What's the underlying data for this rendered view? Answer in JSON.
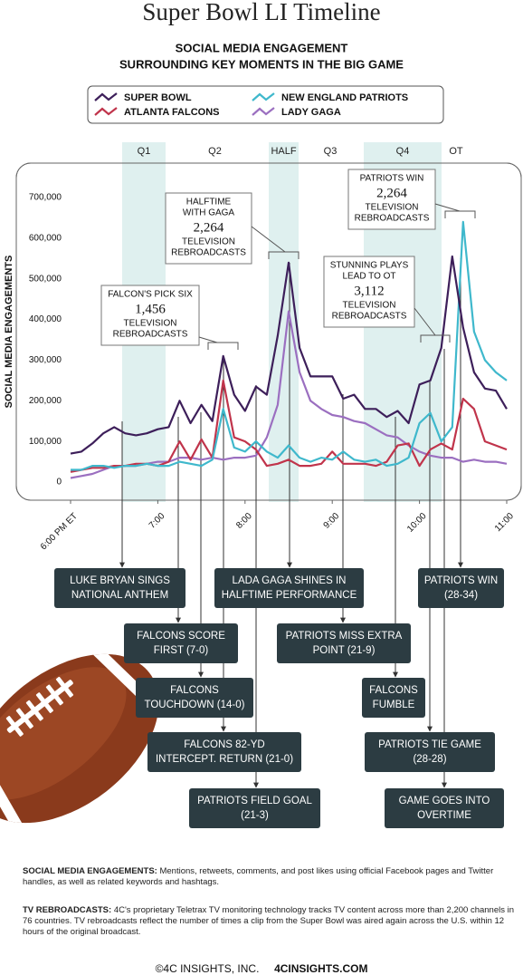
{
  "header": {
    "title": "Super Bowl LI Timeline"
  },
  "chart_data": {
    "type": "line",
    "title": [
      "SOCIAL MEDIA ENGAGEMENT",
      "SURROUNDING KEY MOMENTS IN THE BIG GAME"
    ],
    "ylabel": "SOCIAL MEDIA ENGAGEMENTS",
    "x": [
      18,
      18.125,
      18.25,
      18.375,
      18.5,
      18.625,
      18.75,
      18.875,
      19,
      19.125,
      19.25,
      19.375,
      19.5,
      19.625,
      19.75,
      19.875,
      20,
      20.125,
      20.25,
      20.375,
      20.5,
      20.625,
      20.75,
      20.875,
      21,
      21.125,
      21.25,
      21.375,
      21.5,
      21.625,
      21.75,
      21.875,
      22,
      22.125,
      22.25,
      22.375,
      22.5,
      22.625,
      22.75,
      22.875,
      23
    ],
    "xlim": [
      18,
      23
    ],
    "xticks": [
      {
        "value": 18,
        "label": "6:00 PM ET"
      },
      {
        "value": 19,
        "label": "7:00"
      },
      {
        "value": 20,
        "label": "8:00"
      },
      {
        "value": 21,
        "label": "9:00"
      },
      {
        "value": 22,
        "label": "10:00"
      },
      {
        "value": 23,
        "label": "11:00"
      }
    ],
    "ylim": [
      0,
      700000
    ],
    "yticks": [
      0,
      {
        "value": 100000,
        "label": "100,000"
      },
      {
        "value": 200000,
        "label": "200,000"
      },
      {
        "value": 300000,
        "label": "300,000"
      },
      {
        "value": 400000,
        "label": "400,000"
      },
      {
        "value": 500000,
        "label": "500,000"
      },
      {
        "value": 600000,
        "label": "600,000"
      },
      {
        "value": 700000,
        "label": "700,000"
      }
    ],
    "series": [
      {
        "name": "SUPER BOWL",
        "color": "#3d1f5a",
        "values": [
          70000,
          75000,
          95000,
          120000,
          135000,
          120000,
          115000,
          120000,
          130000,
          135000,
          200000,
          145000,
          190000,
          150000,
          310000,
          215000,
          175000,
          235000,
          215000,
          360000,
          540000,
          330000,
          260000,
          260000,
          260000,
          205000,
          215000,
          180000,
          180000,
          160000,
          175000,
          145000,
          240000,
          250000,
          330000,
          555000,
          380000,
          270000,
          230000,
          225000,
          180000
        ]
      },
      {
        "name": "NEW ENGLAND PATRIOTS",
        "color": "#3fb8cc",
        "values": [
          30000,
          30000,
          40000,
          40000,
          35000,
          40000,
          40000,
          45000,
          40000,
          40000,
          50000,
          45000,
          40000,
          55000,
          180000,
          85000,
          75000,
          100000,
          75000,
          60000,
          90000,
          60000,
          50000,
          60000,
          55000,
          75000,
          55000,
          50000,
          55000,
          40000,
          45000,
          60000,
          145000,
          170000,
          100000,
          135000,
          640000,
          370000,
          300000,
          270000,
          250000
        ]
      },
      {
        "name": "ATLANTA FALCONS",
        "color": "#c0344b",
        "values": [
          25000,
          30000,
          35000,
          35000,
          40000,
          40000,
          45000,
          45000,
          40000,
          50000,
          100000,
          55000,
          105000,
          60000,
          250000,
          110000,
          100000,
          80000,
          40000,
          45000,
          55000,
          40000,
          40000,
          45000,
          75000,
          45000,
          45000,
          45000,
          40000,
          50000,
          90000,
          95000,
          40000,
          80000,
          95000,
          80000,
          205000,
          180000,
          100000,
          90000,
          80000
        ]
      },
      {
        "name": "LADY GAGA",
        "color": "#9b6fc0",
        "values": [
          10000,
          15000,
          20000,
          30000,
          40000,
          40000,
          40000,
          45000,
          50000,
          50000,
          60000,
          60000,
          55000,
          60000,
          55000,
          60000,
          60000,
          65000,
          110000,
          190000,
          420000,
          270000,
          200000,
          180000,
          165000,
          160000,
          150000,
          145000,
          130000,
          115000,
          110000,
          90000,
          75000,
          65000,
          60000,
          60000,
          50000,
          55000,
          50000,
          50000,
          45000
        ]
      }
    ],
    "periods": [
      "Q1",
      "Q2",
      "HALF",
      "Q3",
      "Q4",
      "OT"
    ],
    "annotations": [
      {
        "title": [
          "FALCON'S PICK SIX"
        ],
        "count": "1,456",
        "caption": [
          "TELEVISION",
          "REBROADCASTS"
        ]
      },
      {
        "title": [
          "HALFTIME",
          "WITH GAGA"
        ],
        "count": "2,264",
        "caption": [
          "TELEVISION",
          "REBROADCASTS"
        ]
      },
      {
        "title": [
          "STUNNING PLAYS",
          "LEAD TO OT"
        ],
        "count": "3,112",
        "caption": [
          "TELEVISION",
          "REBROADCASTS"
        ]
      },
      {
        "title": [
          "PATRIOTS WIN"
        ],
        "count": "2,264",
        "caption": [
          "TELEVISION",
          "REBROADCASTS"
        ]
      }
    ],
    "events": [
      [
        "LUKE BRYAN SINGS",
        "NATIONAL ANTHEM"
      ],
      [
        "LADA GAGA SHINES IN",
        "HALFTIME PERFORMANCE"
      ],
      [
        "PATRIOTS WIN",
        "(28-34)"
      ],
      [
        "FALCONS SCORE",
        "FIRST (7-0)"
      ],
      [
        "PATRIOTS MISS EXTRA",
        "POINT (21-9)"
      ],
      [
        "FALCONS",
        "TOUCHDOWN (14-0)"
      ],
      [
        "FALCONS",
        "FUMBLE"
      ],
      [
        "FALCONS  82-YD",
        "INTERCEPT. RETURN (21-0)"
      ],
      [
        "PATRIOTS TIE GAME",
        "(28-28)"
      ],
      [
        "PATRIOTS FIELD GOAL",
        "(21-3)"
      ],
      [
        "GAME GOES INTO",
        "OVERTIME"
      ]
    ]
  },
  "notes": [
    {
      "term": "SOCIAL MEDIA ENGAGEMENTS:",
      "text": "Mentions, retweets, comments, and post likes using official Facebook pages and Twitter handles, as well as related keywords and hashtags."
    },
    {
      "term": "TV REBROADCASTS:",
      "text": "4C's proprietary Teletrax TV monitoring technology tracks TV content across more than 2,200 channels in 76 countries. TV rebroadcasts reflect the number of times a clip from the Super Bowl was aired again across the U.S. within 12 hours of the original broadcast."
    }
  ],
  "footer": {
    "copyright": "©4C INSIGHTS, INC.",
    "site": "4CINSIGHTS.COM"
  }
}
